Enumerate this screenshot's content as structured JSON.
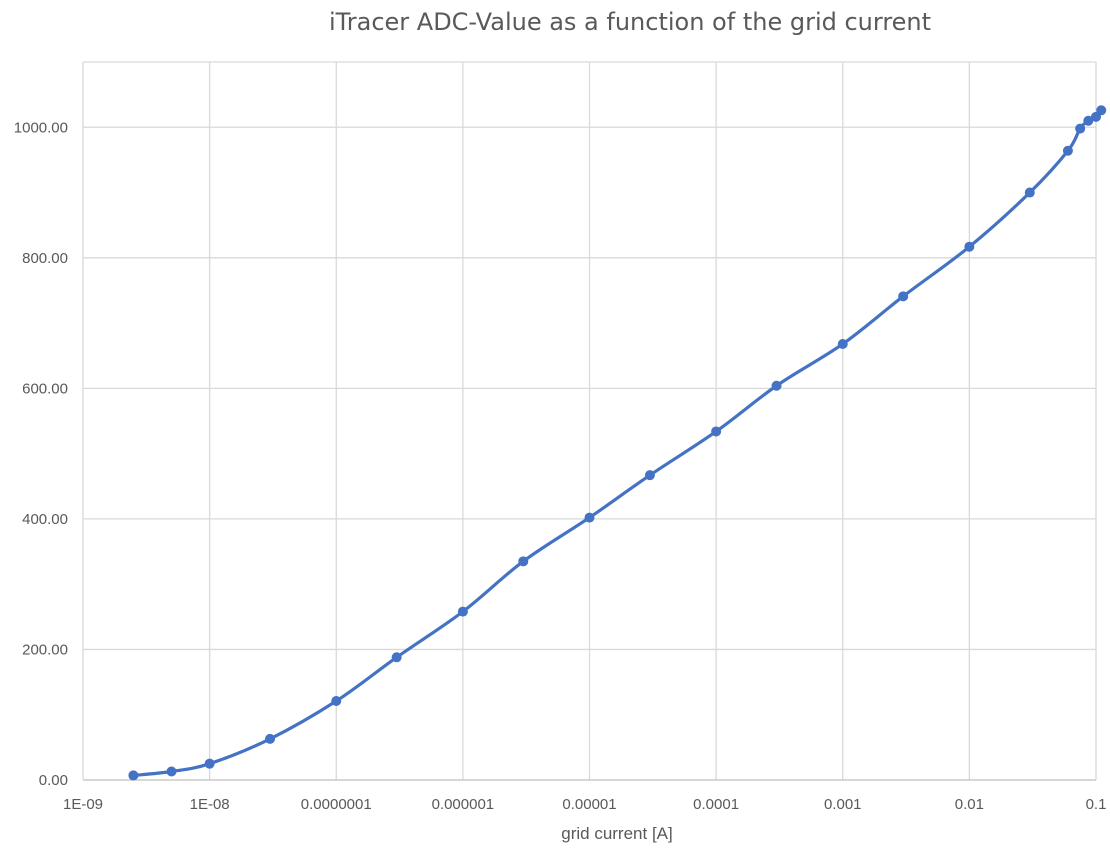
{
  "chart_data": {
    "type": "scatter",
    "title": "iTracer ADC-Value as a function of the grid current",
    "xlabel": "grid current [A]",
    "ylabel": "",
    "xscale": "log",
    "xlim": [
      1e-09,
      0.1
    ],
    "ylim": [
      0,
      1100
    ],
    "grid": true,
    "legend": "none",
    "marker_color": "#4472C4",
    "line_color": "#4472C4",
    "gridline_color": "#D9D9D9",
    "smoothed_line": true,
    "x_tick_labels": [
      "1E-09",
      "1E-08",
      "0.0000001",
      "0.000001",
      "0.00001",
      "0.0001",
      "0.001",
      "0.01",
      "0.1"
    ],
    "x_tick_values": [
      1e-09,
      1e-08,
      1e-07,
      1e-06,
      1e-05,
      0.0001,
      0.001,
      0.01,
      0.1
    ],
    "y_tick_labels": [
      "0.00",
      "200.00",
      "400.00",
      "600.00",
      "800.00",
      "1000.00"
    ],
    "y_tick_values": [
      0,
      200,
      400,
      600,
      800,
      1000
    ],
    "series": [
      {
        "x": [
          2.5e-09,
          5e-09,
          1e-08,
          3e-08,
          1e-07,
          3e-07,
          1e-06,
          3e-06,
          1e-05,
          3e-05,
          0.0001,
          0.0003,
          0.001,
          0.003,
          0.01,
          0.03,
          0.06,
          0.075,
          0.087,
          0.1,
          0.11
        ],
        "y": [
          7,
          13,
          25,
          63,
          121,
          188,
          258,
          335,
          402,
          467,
          534,
          604,
          668,
          741,
          817,
          900,
          964,
          998,
          1010,
          1016,
          1026
        ]
      }
    ]
  }
}
